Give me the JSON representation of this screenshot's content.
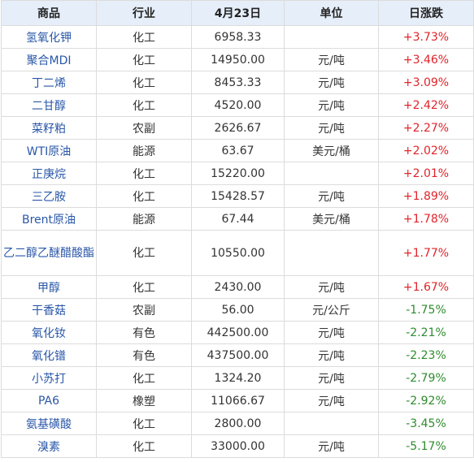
{
  "table": {
    "headers": [
      "商品",
      "行业",
      "4月23日",
      "单位",
      "日涨跌"
    ],
    "colors": {
      "up": "#e0242a",
      "down": "#2e8b2e",
      "name": "#2a57a8",
      "header_bg": "#e5eef9"
    },
    "rows": [
      {
        "name": "氢氧化钾",
        "industry": "化工",
        "price": "6958.33",
        "unit": "",
        "change": "+3.73%",
        "dir": "up"
      },
      {
        "name": "聚合MDI",
        "industry": "化工",
        "price": "14950.00",
        "unit": "元/吨",
        "change": "+3.46%",
        "dir": "up"
      },
      {
        "name": "丁二烯",
        "industry": "化工",
        "price": "8453.33",
        "unit": "元/吨",
        "change": "+3.09%",
        "dir": "up"
      },
      {
        "name": "二甘醇",
        "industry": "化工",
        "price": "4520.00",
        "unit": "元/吨",
        "change": "+2.42%",
        "dir": "up"
      },
      {
        "name": "菜籽粕",
        "industry": "农副",
        "price": "2626.67",
        "unit": "元/吨",
        "change": "+2.27%",
        "dir": "up"
      },
      {
        "name": "WTI原油",
        "industry": "能源",
        "price": "63.67",
        "unit": "美元/桶",
        "change": "+2.02%",
        "dir": "up"
      },
      {
        "name": "正庚烷",
        "industry": "化工",
        "price": "15220.00",
        "unit": "",
        "change": "+2.01%",
        "dir": "up"
      },
      {
        "name": "三乙胺",
        "industry": "化工",
        "price": "15428.57",
        "unit": "元/吨",
        "change": "+1.89%",
        "dir": "up"
      },
      {
        "name": "Brent原油",
        "industry": "能源",
        "price": "67.44",
        "unit": "美元/桶",
        "change": "+1.78%",
        "dir": "up"
      },
      {
        "name": "乙二醇乙醚醋酸酯",
        "industry": "化工",
        "price": "10550.00",
        "unit": "",
        "change": "+1.77%",
        "dir": "up",
        "tall": true
      },
      {
        "name": "甲醇",
        "industry": "化工",
        "price": "2430.00",
        "unit": "元/吨",
        "change": "+1.67%",
        "dir": "up"
      },
      {
        "name": "干香菇",
        "industry": "农副",
        "price": "56.00",
        "unit": "元/公斤",
        "change": "-1.75%",
        "dir": "down"
      },
      {
        "name": "氧化钕",
        "industry": "有色",
        "price": "442500.00",
        "unit": "元/吨",
        "change": "-2.21%",
        "dir": "down"
      },
      {
        "name": "氧化镨",
        "industry": "有色",
        "price": "437500.00",
        "unit": "元/吨",
        "change": "-2.23%",
        "dir": "down"
      },
      {
        "name": "小苏打",
        "industry": "化工",
        "price": "1324.20",
        "unit": "元/吨",
        "change": "-2.79%",
        "dir": "down"
      },
      {
        "name": "PA6",
        "industry": "橡塑",
        "price": "11066.67",
        "unit": "元/吨",
        "change": "-2.92%",
        "dir": "down"
      },
      {
        "name": "氨基磺酸",
        "industry": "化工",
        "price": "2800.00",
        "unit": "",
        "change": "-3.45%",
        "dir": "down"
      },
      {
        "name": "溴素",
        "industry": "化工",
        "price": "33000.00",
        "unit": "元/吨",
        "change": "-5.17%",
        "dir": "down"
      }
    ]
  }
}
